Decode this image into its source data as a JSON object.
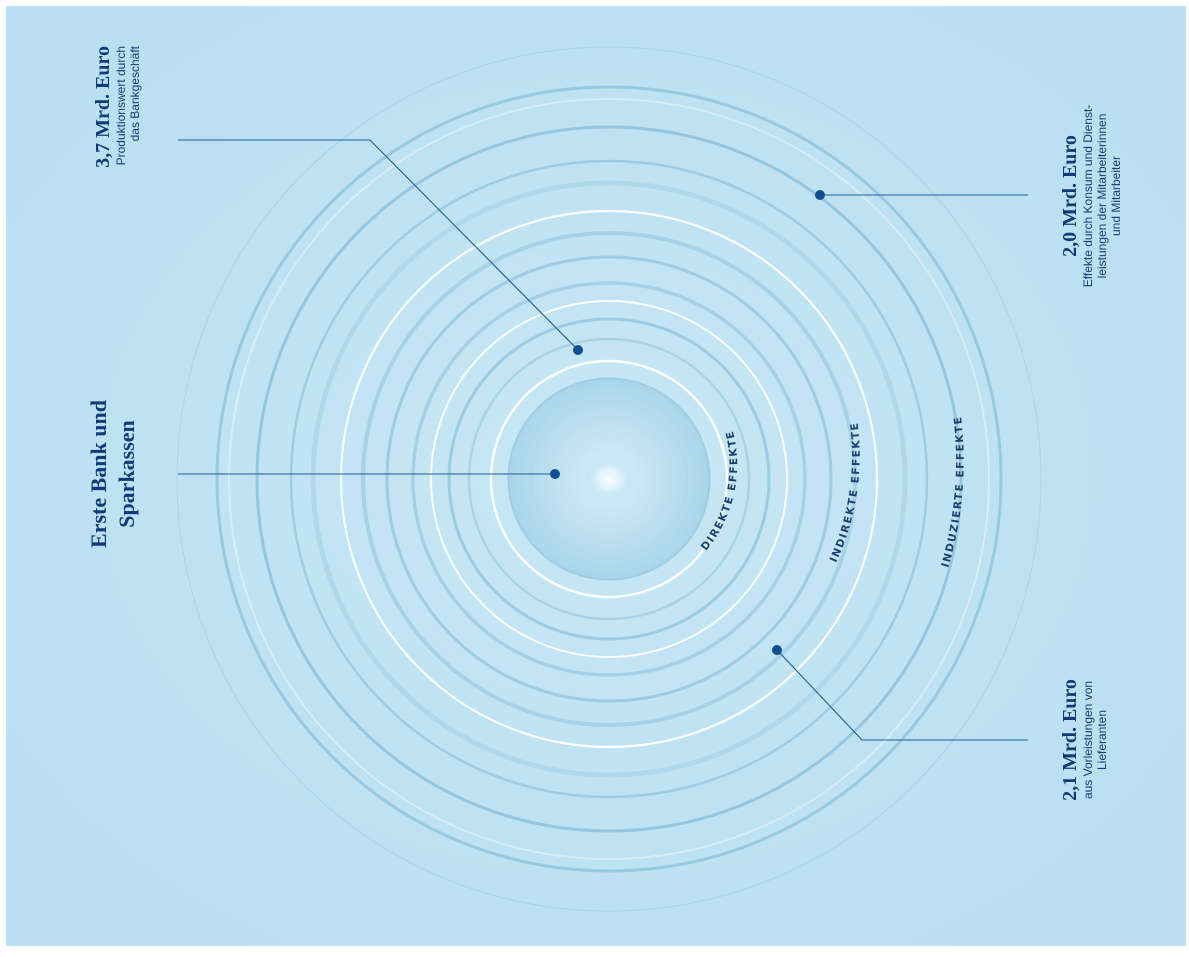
{
  "colors": {
    "background": "#bfe3f3",
    "ring_dark": "#8fc4de",
    "ring_light": "#ffffff",
    "text_dark": "#0f3c78",
    "leader_line": "#1e5d96"
  },
  "center_label": {
    "line1": "Erste Bank und",
    "line2": "Sparkassen"
  },
  "callout_production": {
    "value": "3,7 Mrd. Euro",
    "line1": "Produktionswert durch",
    "line2": "das Bankgeschäft"
  },
  "callout_induced": {
    "value": "2,0 Mrd. Euro",
    "line1": "Effekte durch Konsum und Dienst-",
    "line2": "leistungen der Mitarbeiterinnen",
    "line3": "und Mitarbeiter"
  },
  "callout_indirect": {
    "value": "2,1 Mrd. Euro",
    "line1": "aus Vorleistungen von",
    "line2": "Lieferanten"
  },
  "ring_labels": {
    "direct": "DIREKTE EFFEKTE",
    "indirect": "INDIREKTE EFFEKTE",
    "induced": "INDUZIERTE EFFEKTE"
  }
}
